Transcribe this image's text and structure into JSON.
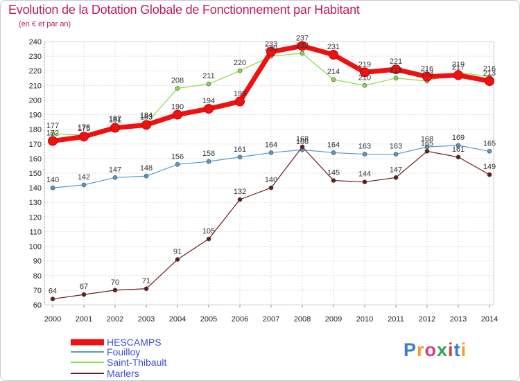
{
  "title": "Evolution de la Dotation Globale de Fonctionnement par Habitant",
  "subtitle": "(en € et par an)",
  "logo": {
    "text": "Proxiti",
    "letters": [
      "P",
      "r",
      "o",
      "x",
      "i",
      "t",
      "i"
    ]
  },
  "chart_data": {
    "type": "line",
    "title": "Evolution de la Dotation Globale de Fonctionnement par Habitant",
    "subtitle": "(en € et par an)",
    "x": [
      "2000",
      "2001",
      "2002",
      "2003",
      "2004",
      "2005",
      "2006",
      "2007",
      "2008",
      "2009",
      "2010",
      "2011",
      "2012",
      "2013",
      "2014"
    ],
    "ylim": [
      60,
      240
    ],
    "yticks": [
      60,
      70,
      80,
      90,
      100,
      110,
      120,
      130,
      140,
      150,
      160,
      170,
      180,
      190,
      200,
      210,
      220,
      230,
      240
    ],
    "grid": true,
    "legend": "bottom-left",
    "series": [
      {
        "name": "HESCAMPS",
        "color": "#ee1111",
        "width": 7,
        "values": [
          172,
          175,
          181,
          183,
          190,
          194,
          199,
          233,
          237,
          231,
          219,
          221,
          216,
          217,
          213
        ]
      },
      {
        "name": "Fouilloy",
        "color": "#5599cc",
        "width": 1.2,
        "values": [
          140,
          142,
          147,
          148,
          156,
          158,
          161,
          164,
          166,
          164,
          163,
          163,
          168,
          169,
          165
        ]
      },
      {
        "name": "Saint-Thibault",
        "color": "#88dd44",
        "width": 1.2,
        "values": [
          177,
          176,
          182,
          184,
          208,
          211,
          220,
          230,
          232,
          214,
          210,
          215,
          213,
          219,
          216
        ]
      },
      {
        "name": "Marlers",
        "color": "#6b1a1a",
        "width": 1.2,
        "values": [
          64,
          67,
          70,
          71,
          91,
          105,
          132,
          140,
          168,
          145,
          144,
          147,
          165,
          161,
          149
        ]
      }
    ]
  }
}
